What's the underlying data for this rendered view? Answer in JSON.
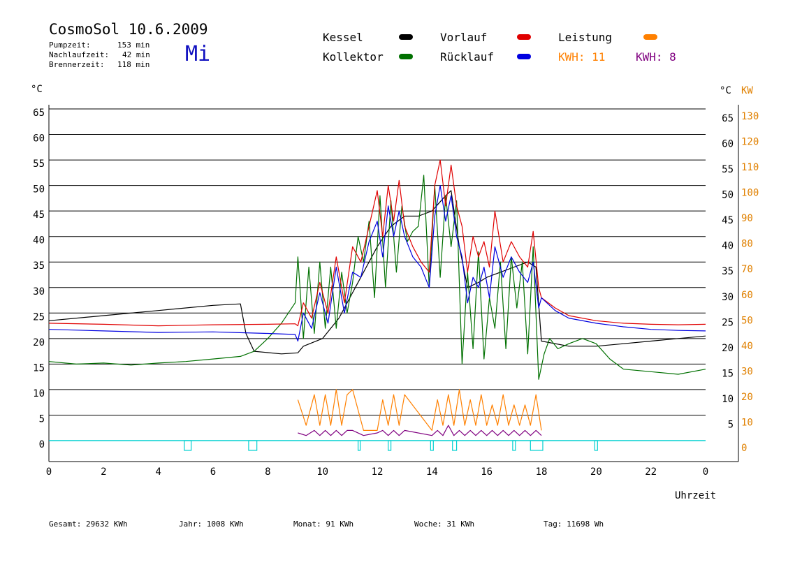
{
  "header": {
    "title": "CosmoSol 10.6.2009",
    "weekday": "Mi",
    "info": [
      {
        "label": "Pumpzeit:",
        "value": "153 min"
      },
      {
        "label": "Nachlaufzeit:",
        "value": "42 min"
      },
      {
        "label": "Brennerzeit:",
        "value": "118 min"
      }
    ]
  },
  "legend": {
    "kessel": "Kessel",
    "kollektor": "Kollektor",
    "vorlauf": "Vorlauf",
    "ruecklauf": "Rücklauf",
    "leistung": "Leistung",
    "kwh1": "KWH: 11",
    "kwh2": "KWH: 8"
  },
  "axes": {
    "left_unit": "°C",
    "right_unit_c": "°C",
    "right_unit_kw": "KW",
    "xlabel": "Uhrzeit"
  },
  "colors": {
    "kessel": "#000000",
    "kollektor": "#007000",
    "vorlauf": "#e00000",
    "ruecklauf": "#0000e0",
    "leistung": "#ff8000",
    "kwh2": "#800080",
    "pump": "#00d0d0"
  },
  "footer": {
    "gesamt": "Gesamt:  29632 KWh",
    "jahr": "Jahr:   1008 KWh",
    "monat": "Monat:     91 KWh",
    "woche": "Woche:     31 KWh",
    "tag": "Tag:  11698 Wh"
  },
  "chart_data": {
    "type": "line",
    "xlabel": "Uhrzeit",
    "ylabel": "°C",
    "xlim": [
      0,
      24
    ],
    "ylim": [
      0,
      65
    ],
    "y2lim": [
      0,
      130
    ],
    "x_ticks": [
      "0",
      "2",
      "4",
      "6",
      "8",
      "10",
      "12",
      "14",
      "16",
      "18",
      "20",
      "22",
      "0"
    ],
    "y_ticks": [
      0,
      5,
      10,
      15,
      20,
      25,
      30,
      35,
      40,
      45,
      50,
      55,
      60,
      65
    ],
    "y2_ticks_c": [
      5,
      10,
      15,
      20,
      25,
      30,
      35,
      40,
      45,
      50,
      55,
      60,
      65
    ],
    "y2_ticks_kw": [
      0,
      10,
      20,
      30,
      40,
      50,
      60,
      70,
      80,
      90,
      100,
      110,
      120,
      130
    ],
    "grid": true,
    "series": [
      {
        "name": "Kessel",
        "color": "#000000",
        "x": [
          0,
          2,
          4,
          6,
          7,
          7.2,
          7.5,
          8.5,
          9.1,
          9.3,
          10,
          10.6,
          11,
          11.5,
          12,
          12.5,
          13,
          13.5,
          14,
          14.5,
          14.7,
          15,
          15.3,
          15.7,
          16,
          16.5,
          17,
          17.5,
          17.8,
          18,
          19,
          20,
          21,
          22,
          23,
          24
        ],
        "y": [
          23.5,
          24.5,
          25.5,
          26.5,
          26.8,
          21,
          17.5,
          17,
          17.2,
          18.5,
          20,
          24,
          28,
          33,
          38,
          42,
          44,
          44,
          45,
          48,
          49,
          38,
          30,
          31,
          32,
          33,
          34,
          35,
          34,
          19.5,
          18.5,
          18.5,
          19,
          19.5,
          20,
          20.5
        ]
      },
      {
        "name": "Kollektor",
        "color": "#007000",
        "x": [
          0,
          1,
          2,
          3,
          4,
          5,
          6,
          7,
          7.5,
          8,
          8.5,
          9,
          9.1,
          9.3,
          9.5,
          9.7,
          9.9,
          10.1,
          10.3,
          10.5,
          10.7,
          10.9,
          11.1,
          11.3,
          11.5,
          11.7,
          11.9,
          12.1,
          12.3,
          12.5,
          12.7,
          12.9,
          13.1,
          13.3,
          13.5,
          13.7,
          13.9,
          14.1,
          14.3,
          14.5,
          14.7,
          14.9,
          15.1,
          15.3,
          15.5,
          15.7,
          15.9,
          16.1,
          16.3,
          16.5,
          16.7,
          16.9,
          17.1,
          17.3,
          17.5,
          17.7,
          17.9,
          18.1,
          18.3,
          18.6,
          19,
          19.5,
          20,
          20.5,
          21,
          22,
          23,
          24
        ],
        "y": [
          15.5,
          15,
          15.2,
          14.8,
          15.2,
          15.5,
          16,
          16.5,
          17.5,
          20,
          23,
          27,
          36,
          20,
          34,
          21,
          35,
          22,
          34,
          22,
          33,
          25,
          31,
          40,
          35,
          43,
          28,
          48,
          30,
          47,
          33,
          46,
          39,
          41,
          42,
          52,
          30,
          50,
          32,
          48,
          38,
          47,
          15,
          33,
          18,
          37,
          16,
          28,
          22,
          35,
          18,
          36,
          26,
          35,
          17,
          38,
          12,
          17,
          20,
          18,
          19,
          20,
          19,
          16,
          14,
          13.5,
          13,
          14
        ]
      },
      {
        "name": "Vorlauf",
        "color": "#e00000",
        "x": [
          0,
          2,
          4,
          6,
          8,
          9,
          9.1,
          9.3,
          9.6,
          9.9,
          10.2,
          10.5,
          10.8,
          11.1,
          11.4,
          11.7,
          12,
          12.2,
          12.4,
          12.6,
          12.8,
          13,
          13.3,
          13.6,
          13.9,
          14.1,
          14.3,
          14.5,
          14.7,
          14.9,
          15.1,
          15.3,
          15.5,
          15.7,
          15.9,
          16.1,
          16.3,
          16.6,
          16.9,
          17.2,
          17.5,
          17.7,
          17.9,
          18,
          18.5,
          19,
          20,
          21,
          22,
          23,
          24
        ],
        "y": [
          23,
          22.8,
          22.5,
          22.7,
          22.8,
          22.9,
          22.5,
          27,
          24,
          31,
          25,
          36,
          27,
          38,
          35,
          42,
          49,
          40,
          50,
          43,
          51,
          42,
          38,
          35,
          33,
          50,
          55,
          46,
          54,
          46,
          42,
          33,
          40,
          36,
          39,
          34,
          45,
          35,
          39,
          36,
          34,
          41,
          30,
          28,
          26,
          24.5,
          23.5,
          23,
          22.8,
          22.7,
          22.8
        ]
      },
      {
        "name": "Rücklauf",
        "color": "#0000e0",
        "x": [
          0,
          2,
          4,
          6,
          8,
          9,
          9.1,
          9.3,
          9.6,
          9.9,
          10.2,
          10.5,
          10.8,
          11.1,
          11.4,
          11.7,
          12,
          12.2,
          12.4,
          12.6,
          12.8,
          13,
          13.3,
          13.6,
          13.9,
          14.1,
          14.3,
          14.5,
          14.7,
          14.9,
          15.1,
          15.3,
          15.5,
          15.7,
          15.9,
          16.1,
          16.3,
          16.6,
          16.9,
          17.2,
          17.5,
          17.7,
          17.9,
          18,
          18.5,
          19,
          20,
          21,
          22,
          23,
          24
        ],
        "y": [
          21.8,
          21.5,
          21.2,
          21.3,
          21,
          20.8,
          19.5,
          25,
          22,
          29,
          23,
          34,
          25,
          33,
          32,
          39,
          43,
          36,
          46,
          40,
          45,
          40,
          36,
          34,
          30,
          44,
          50,
          43,
          48,
          40,
          36,
          27,
          32,
          30,
          34,
          28,
          38,
          32,
          36,
          33,
          31,
          35,
          26,
          28,
          25.5,
          24,
          23,
          22.3,
          21.8,
          21.6,
          21.5
        ]
      },
      {
        "name": "Leistung",
        "color": "#ff8000",
        "x": [
          9.1,
          9.4,
          9.7,
          9.9,
          10.1,
          10.3,
          10.5,
          10.7,
          10.9,
          11.1,
          11.5,
          12,
          12.2,
          12.4,
          12.6,
          12.8,
          13,
          14,
          14.2,
          14.4,
          14.6,
          14.8,
          15,
          15.2,
          15.4,
          15.6,
          15.8,
          16,
          16.2,
          16.4,
          16.6,
          16.8,
          17,
          17.2,
          17.4,
          17.6,
          17.8,
          18
        ],
        "y": [
          8,
          3,
          9,
          3,
          9,
          3,
          10,
          3,
          9,
          10,
          2,
          2,
          8,
          3,
          9,
          3,
          9,
          2,
          8,
          3,
          9,
          3,
          10,
          3,
          8,
          3,
          9,
          3,
          7,
          3,
          9,
          3,
          7,
          3,
          7,
          3,
          9,
          2
        ]
      },
      {
        "name": "KWH 8",
        "color": "#800080",
        "x": [
          9.1,
          9.4,
          9.7,
          9.9,
          10.1,
          10.3,
          10.5,
          10.7,
          10.9,
          11.1,
          11.5,
          12,
          12.2,
          12.4,
          12.6,
          12.8,
          13,
          14,
          14.2,
          14.4,
          14.6,
          14.8,
          15,
          15.2,
          15.4,
          15.6,
          15.8,
          16,
          16.2,
          16.4,
          16.6,
          16.8,
          17,
          17.2,
          17.4,
          17.6,
          17.8,
          18
        ],
        "y": [
          1.5,
          1,
          2,
          1,
          2,
          1,
          2,
          1,
          2,
          2,
          1,
          1.5,
          2,
          1,
          2,
          1,
          2,
          1,
          2,
          1,
          3,
          1,
          2,
          1,
          2,
          1,
          2,
          1,
          2,
          1,
          2,
          1,
          2,
          1,
          2,
          1,
          2,
          1
        ]
      }
    ],
    "pump_on_intervals": [
      [
        4.95,
        5.2
      ],
      [
        7.3,
        7.6
      ],
      [
        11.3,
        11.35
      ],
      [
        12.4,
        12.5
      ],
      [
        13.95,
        14.05
      ],
      [
        14.75,
        14.9
      ],
      [
        16.95,
        17.05
      ],
      [
        17.6,
        18.05
      ],
      [
        19.95,
        20.05
      ]
    ]
  }
}
